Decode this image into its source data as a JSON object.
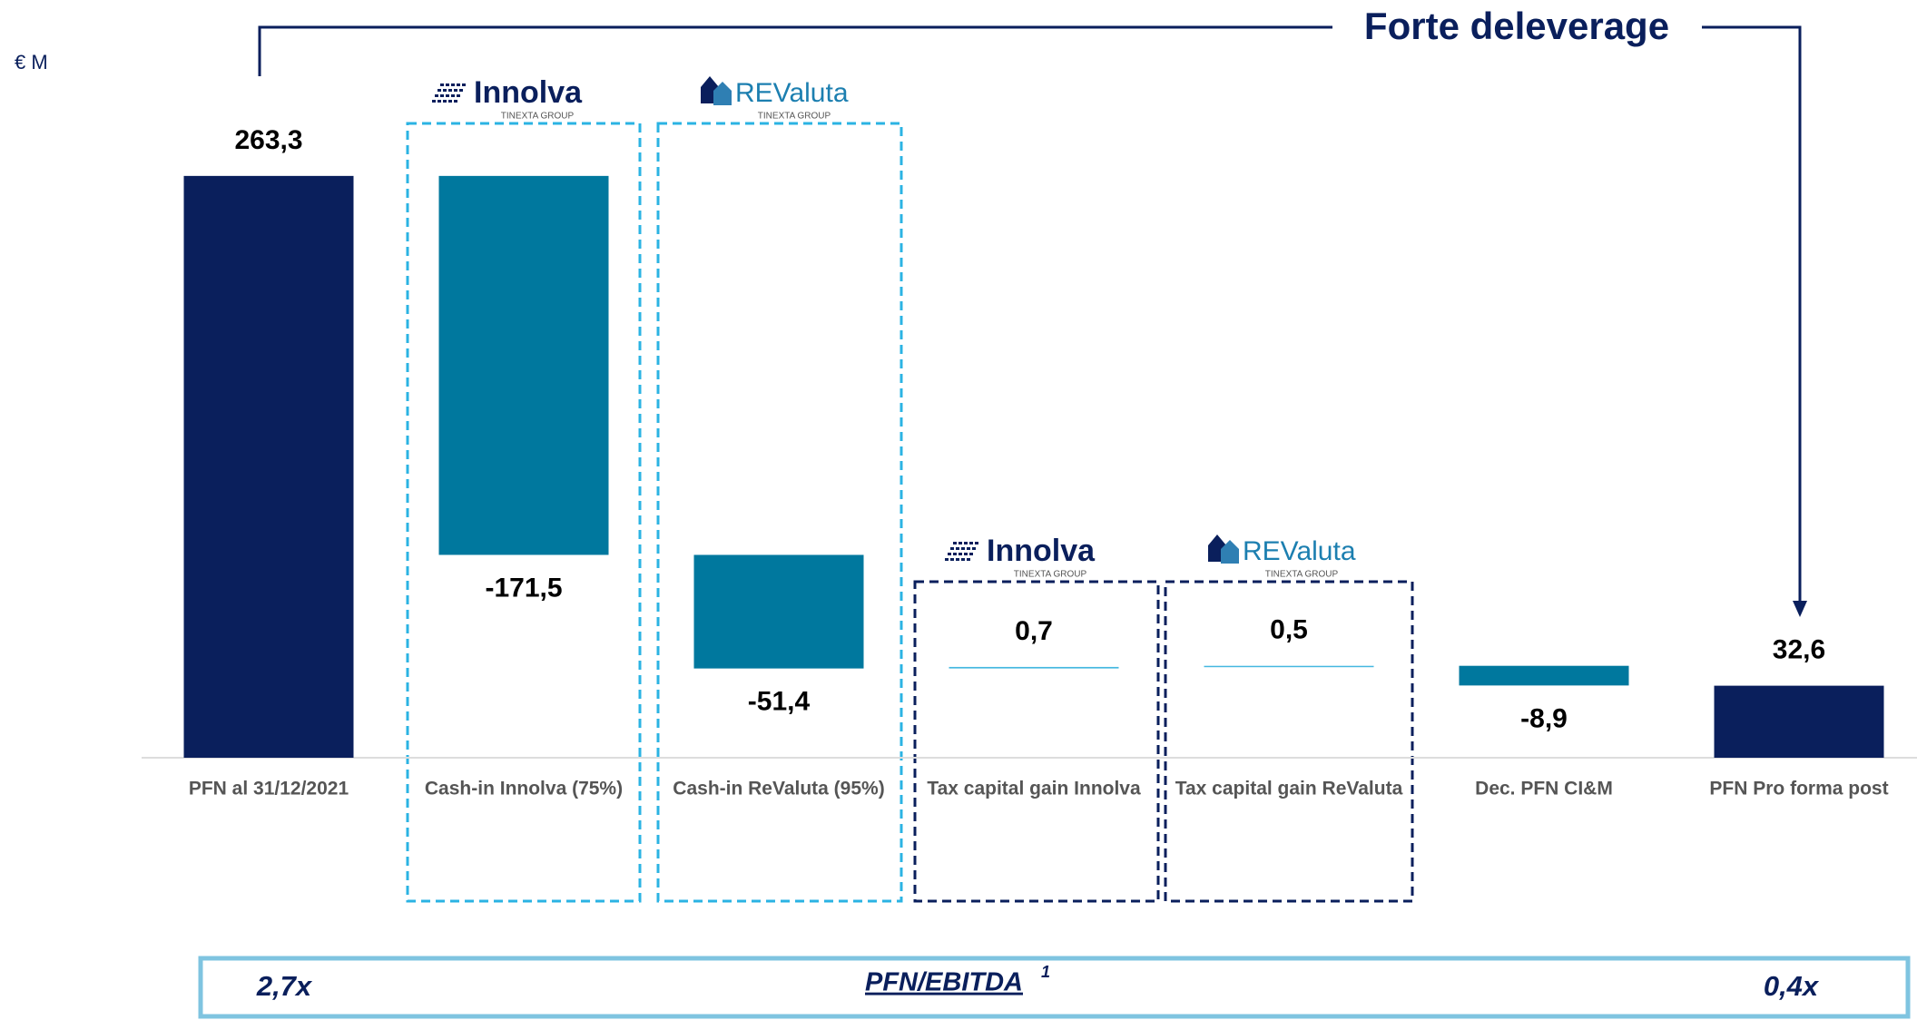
{
  "chart_data": {
    "type": "waterfall",
    "unit_label": "€ M",
    "annotation": "Forte deleverage",
    "categories": [
      "PFN al 31/12/2021",
      "Cash-in Innolva (75%)",
      "Cash-in ReValuta (95%)",
      "Tax capital gain Innolva",
      "Tax capital gain ReValuta",
      "Dec. PFN CI&M",
      "PFN Pro forma post"
    ],
    "values": [
      263.3,
      -171.5,
      -51.4,
      0.7,
      0.5,
      -8.9,
      32.6
    ],
    "value_labels": [
      "263,3",
      "-171,5",
      "-51,4",
      "0,7",
      "0,5",
      "-8,9",
      "32,6"
    ],
    "totals": [
      true,
      false,
      false,
      false,
      false,
      false,
      true
    ],
    "colors": [
      "#0a1f5c",
      "#00789e",
      "#00789e",
      "#45b8e0",
      "#45b8e0",
      "#00789e",
      "#0a1f5c"
    ],
    "ylim": [
      0,
      300
    ],
    "logos": [
      {
        "name": "Innolva",
        "sub": "TINEXTA GROUP"
      },
      {
        "name": "REValuta",
        "sub": "TINEXTA GROUP"
      },
      {
        "name": "Innolva",
        "sub": "TINEXTA GROUP"
      },
      {
        "name": "REValuta",
        "sub": "TINEXTA GROUP"
      }
    ],
    "footer": {
      "left": "2,7x",
      "title": "PFN/EBITDA",
      "note": "1",
      "right": "0,4x"
    }
  }
}
